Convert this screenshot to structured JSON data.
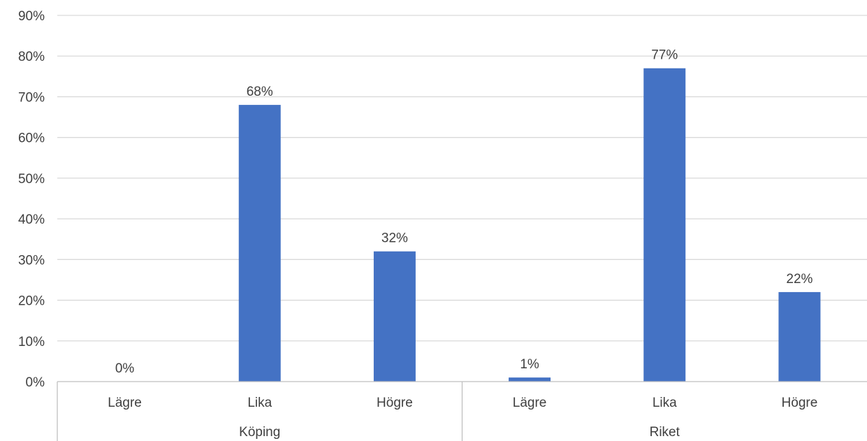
{
  "chart_data": {
    "type": "bar",
    "groups": [
      {
        "name": "Köping",
        "categories": [
          "Lägre",
          "Lika",
          "Högre"
        ],
        "values": [
          0,
          68,
          32
        ],
        "labels": [
          "0%",
          "68%",
          "32%"
        ]
      },
      {
        "name": "Riket",
        "categories": [
          "Lägre",
          "Lika",
          "Högre"
        ],
        "values": [
          1,
          77,
          22
        ],
        "labels": [
          "1%",
          "77%",
          "22%"
        ]
      }
    ],
    "yticks": [
      "0%",
      "10%",
      "20%",
      "30%",
      "40%",
      "50%",
      "60%",
      "70%",
      "80%",
      "90%"
    ],
    "ylim": [
      0,
      90
    ],
    "grid": true,
    "legend": "none",
    "bar_color": "#4472C4"
  }
}
